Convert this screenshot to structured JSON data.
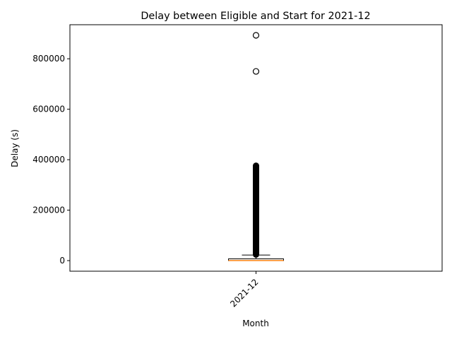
{
  "chart_data": {
    "type": "box",
    "title": "Delay between Eligible and Start for 2021-12",
    "xlabel": "Month",
    "ylabel": "Delay (s)",
    "categories": [
      "2021-12"
    ],
    "ylim": [
      -42000,
      935000
    ],
    "yticks": [
      0,
      200000,
      400000,
      600000,
      800000
    ],
    "ytick_labels": [
      "0",
      "200000",
      "400000",
      "600000",
      "800000"
    ],
    "grid": false,
    "boxes": [
      {
        "category": "2021-12",
        "whisker_low": 0,
        "q1": 0,
        "median": 500,
        "q3": 7000,
        "whisker_high": 22000,
        "outlier_band": [
          24000,
          376000
        ],
        "outliers": [
          750000,
          893000
        ]
      }
    ],
    "colors": {
      "box": "#000000",
      "median": "#ff7f0e",
      "outlier": "#000000"
    }
  }
}
